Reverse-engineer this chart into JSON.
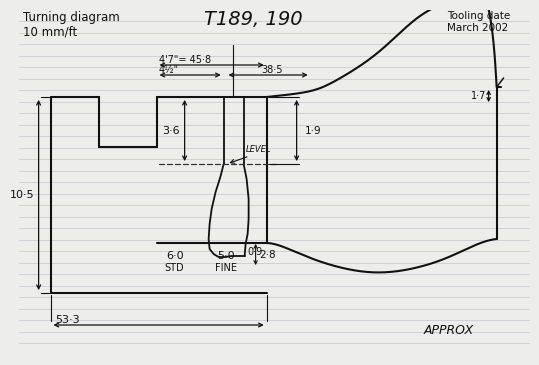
{
  "title": "T189, 190",
  "top_left_line1": "Turning diagram",
  "top_left_line2": "10 mm/ft",
  "top_right_line1": "Tooling date",
  "top_right_line2": "March 2002",
  "bottom_right": "APPROX",
  "bottom_left_dim": "53·3",
  "dim_47": "4'7\"= 45·8",
  "dim_45": "4½\"",
  "dim_385": "38·5",
  "dim_36": "3·6",
  "dim_105": "10·5",
  "dim_19": "1·9",
  "dim_17": "1·7",
  "dim_60": "6·0",
  "dim_50": "5·0",
  "dim_std": "STD",
  "dim_fine": "FINE",
  "dim_09": "0·9",
  "dim_28": "2·8",
  "label_level": "LEVEL",
  "bg_color": "#ededea",
  "line_color": "#111111",
  "ruled_color": "#b8bcc8"
}
